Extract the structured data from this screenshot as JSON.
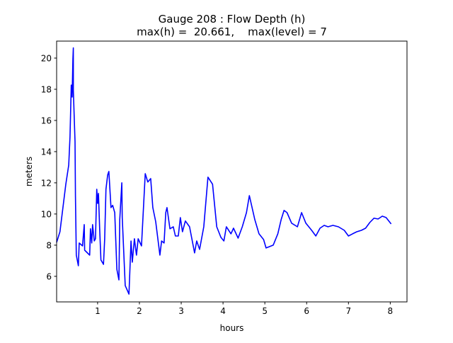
{
  "chart_data": {
    "type": "line",
    "title": "Gauge 208 : Flow Depth (h)",
    "subtitle": "max(h) =  20.661,    max(level) = 7",
    "xlabel": "hours",
    "ylabel": "meters",
    "xlim": [
      0.02,
      8.4
    ],
    "ylim": [
      4.36,
      21.09
    ],
    "xticks": [
      1,
      2,
      3,
      4,
      5,
      6,
      7,
      8
    ],
    "yticks": [
      6,
      8,
      10,
      12,
      14,
      16,
      18,
      20
    ],
    "grid": false,
    "line_color": "#0000ff",
    "x": [
      0.02,
      0.1,
      0.24,
      0.31,
      0.34,
      0.37,
      0.39,
      0.41,
      0.42,
      0.42,
      0.46,
      0.47,
      0.49,
      0.54,
      0.56,
      0.64,
      0.68,
      0.69,
      0.81,
      0.83,
      0.86,
      0.88,
      0.92,
      0.95,
      0.98,
      1.0,
      1.02,
      1.05,
      1.08,
      1.14,
      1.17,
      1.2,
      1.24,
      1.27,
      1.32,
      1.36,
      1.41,
      1.46,
      1.51,
      1.53,
      1.58,
      1.59,
      1.66,
      1.75,
      1.8,
      1.83,
      1.88,
      1.93,
      1.97,
      2.05,
      2.14,
      2.2,
      2.27,
      2.32,
      2.39,
      2.49,
      2.53,
      2.59,
      2.63,
      2.66,
      2.73,
      2.81,
      2.86,
      2.93,
      2.98,
      3.03,
      3.1,
      3.2,
      3.32,
      3.37,
      3.44,
      3.54,
      3.64,
      3.75,
      3.85,
      3.95,
      4.02,
      4.08,
      4.19,
      4.25,
      4.36,
      4.46,
      4.56,
      4.63,
      4.76,
      4.86,
      4.97,
      5.03,
      5.2,
      5.31,
      5.39,
      5.46,
      5.53,
      5.64,
      5.78,
      5.88,
      5.98,
      6.12,
      6.22,
      6.32,
      6.42,
      6.51,
      6.63,
      6.76,
      6.9,
      7.0,
      7.1,
      7.2,
      7.31,
      7.41,
      7.51,
      7.61,
      7.71,
      7.81,
      7.9,
      8.02
    ],
    "y": [
      8.18,
      8.86,
      11.91,
      13.14,
      14.95,
      18.27,
      17.5,
      19.95,
      20.66,
      17.95,
      14.64,
      11.14,
      7.36,
      6.68,
      8.14,
      7.95,
      9.32,
      7.68,
      7.36,
      9.05,
      8.14,
      9.32,
      8.27,
      8.41,
      11.59,
      10.68,
      11.32,
      9.05,
      7.05,
      6.77,
      8.41,
      11.59,
      12.5,
      12.73,
      10.41,
      10.55,
      10.09,
      6.45,
      5.77,
      9.64,
      12.0,
      9.77,
      5.41,
      4.86,
      8.27,
      6.91,
      8.41,
      7.36,
      8.41,
      7.95,
      12.59,
      12.05,
      12.27,
      10.41,
      9.5,
      7.36,
      8.27,
      8.14,
      10.09,
      10.41,
      9.05,
      9.18,
      8.59,
      8.59,
      9.77,
      8.86,
      9.55,
      9.18,
      7.5,
      8.27,
      7.73,
      9.18,
      12.36,
      11.91,
      9.18,
      8.5,
      8.27,
      9.18,
      8.73,
      9.09,
      8.45,
      9.18,
      10.09,
      11.18,
      9.64,
      8.73,
      8.36,
      7.82,
      8.0,
      8.73,
      9.64,
      10.23,
      10.09,
      9.41,
      9.18,
      10.09,
      9.41,
      8.95,
      8.59,
      9.09,
      9.27,
      9.18,
      9.27,
      9.18,
      8.95,
      8.59,
      8.73,
      8.86,
      8.95,
      9.09,
      9.45,
      9.73,
      9.68,
      9.86,
      9.77,
      9.36
    ]
  }
}
